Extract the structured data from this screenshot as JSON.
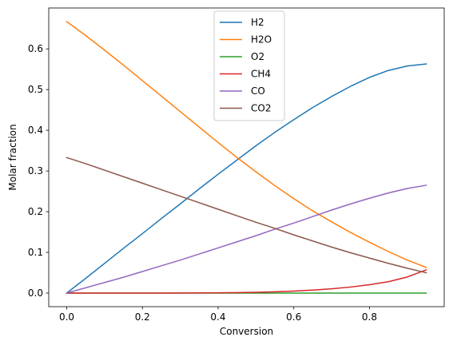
{
  "chart_data": {
    "type": "line",
    "title": "",
    "xlabel": "Conversion",
    "ylabel": "Molar fraction",
    "xlim": [
      -0.0475,
      0.9975
    ],
    "ylim": [
      -0.0334,
      0.7005
    ],
    "xticks": [
      0.0,
      0.2,
      0.4,
      0.6,
      0.8
    ],
    "xtick_labels": [
      "0.0",
      "0.2",
      "0.4",
      "0.6",
      "0.8"
    ],
    "yticks": [
      0.0,
      0.1,
      0.2,
      0.3,
      0.4,
      0.5,
      0.6
    ],
    "ytick_labels": [
      "0.0",
      "0.1",
      "0.2",
      "0.3",
      "0.4",
      "0.5",
      "0.6"
    ],
    "grid": false,
    "legend_position": "top-center",
    "x": [
      0.0,
      0.05,
      0.1,
      0.15,
      0.2,
      0.25,
      0.3,
      0.35,
      0.4,
      0.45,
      0.5,
      0.55,
      0.6,
      0.65,
      0.7,
      0.75,
      0.8,
      0.85,
      0.9,
      0.95
    ],
    "series": [
      {
        "name": "H2",
        "color": "#1f77b4",
        "values": [
          0.0,
          0.036,
          0.073,
          0.11,
          0.146,
          0.183,
          0.219,
          0.256,
          0.292,
          0.327,
          0.362,
          0.395,
          0.426,
          0.456,
          0.483,
          0.508,
          0.53,
          0.547,
          0.558,
          0.563
        ]
      },
      {
        "name": "H2O",
        "color": "#ff7f0e",
        "values": [
          0.667,
          0.633,
          0.597,
          0.56,
          0.522,
          0.484,
          0.446,
          0.408,
          0.37,
          0.333,
          0.298,
          0.264,
          0.232,
          0.202,
          0.175,
          0.149,
          0.125,
          0.102,
          0.081,
          0.063
        ]
      },
      {
        "name": "O2",
        "color": "#2ca02c",
        "values": [
          0.0,
          0.0,
          0.0,
          0.0,
          0.0,
          0.0,
          0.0,
          0.0,
          0.0,
          0.0,
          0.0,
          0.0,
          0.0,
          0.0,
          0.0,
          0.0,
          0.0,
          0.0,
          0.0,
          0.0
        ]
      },
      {
        "name": "CH4",
        "color": "#d62728",
        "values": [
          0.0,
          0.0,
          0.0,
          0.0,
          0.0,
          0.0,
          0.0002,
          0.0004,
          0.0008,
          0.0013,
          0.002,
          0.0032,
          0.0049,
          0.0073,
          0.0105,
          0.0148,
          0.0205,
          0.028,
          0.0395,
          0.057
        ]
      },
      {
        "name": "CO",
        "color": "#9467bd",
        "values": [
          0.0,
          0.013,
          0.026,
          0.039,
          0.053,
          0.067,
          0.081,
          0.096,
          0.111,
          0.126,
          0.141,
          0.157,
          0.172,
          0.188,
          0.204,
          0.219,
          0.233,
          0.246,
          0.257,
          0.265
        ]
      },
      {
        "name": "CO2",
        "color": "#8c564b",
        "values": [
          0.333,
          0.318,
          0.302,
          0.286,
          0.27,
          0.254,
          0.238,
          0.222,
          0.206,
          0.19,
          0.174,
          0.159,
          0.143,
          0.128,
          0.113,
          0.099,
          0.086,
          0.073,
          0.061,
          0.05
        ]
      }
    ]
  }
}
